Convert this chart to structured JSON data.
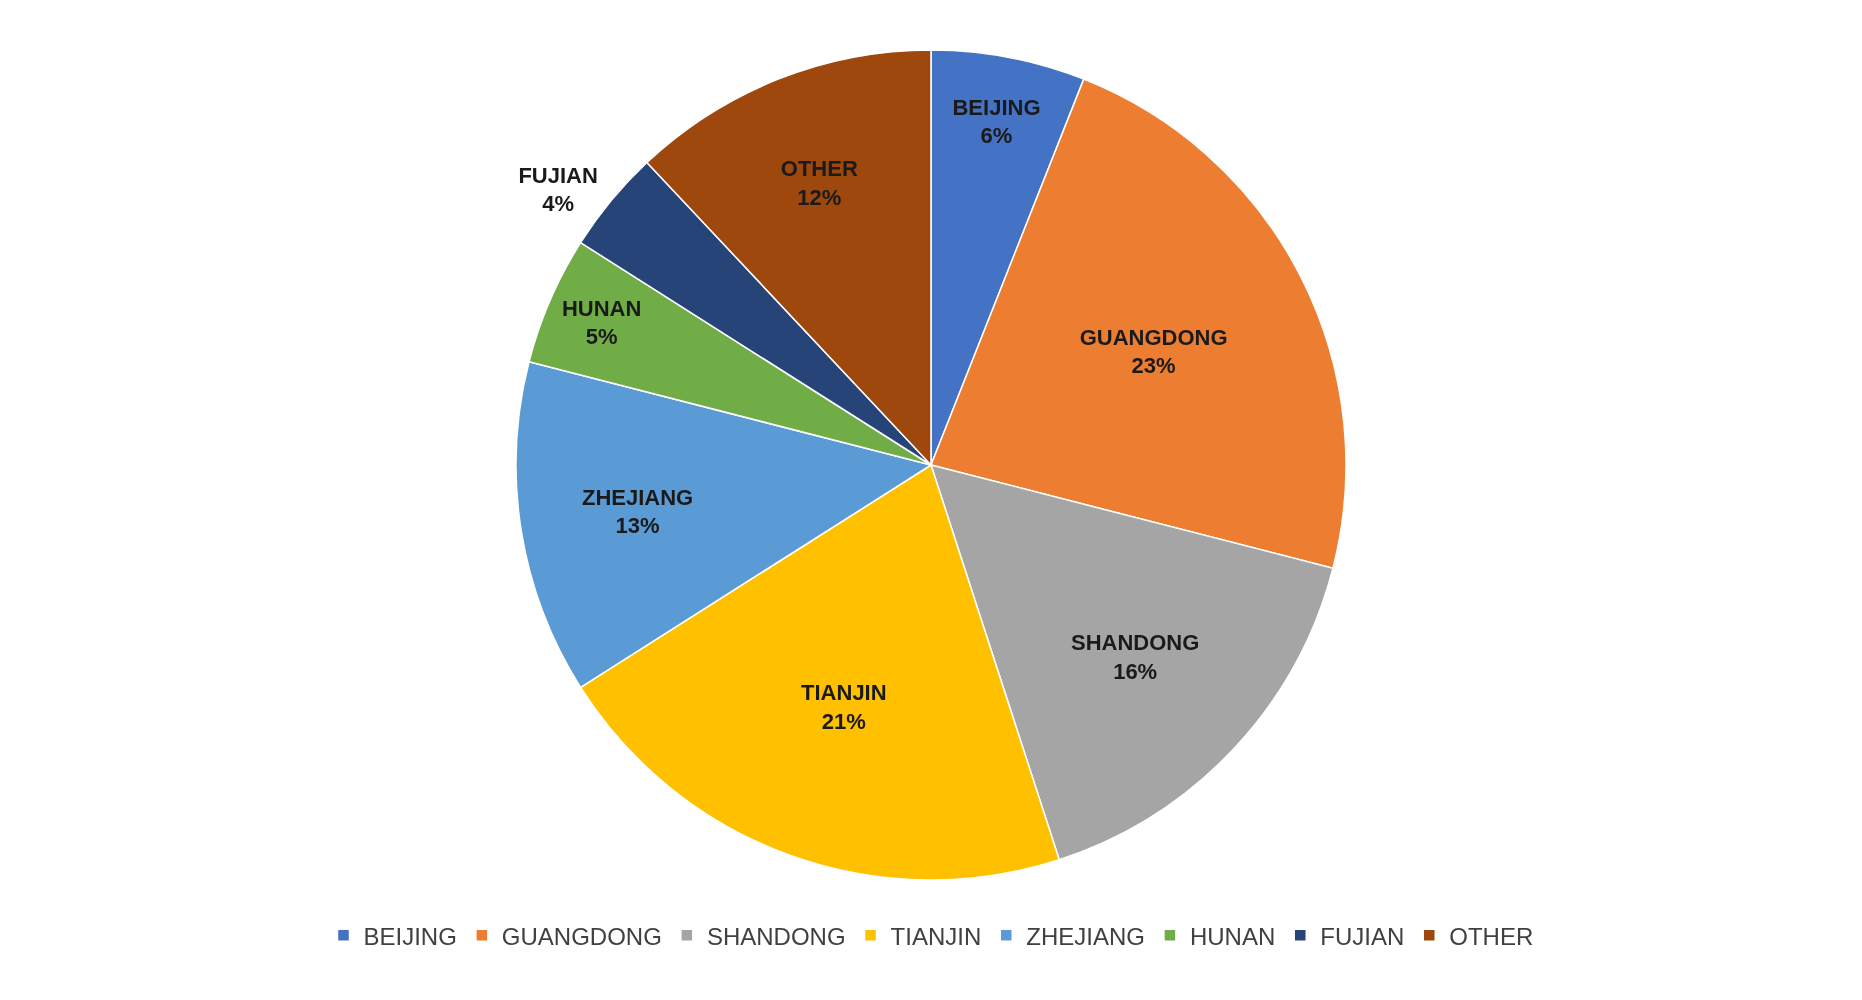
{
  "chart_data": {
    "type": "pie",
    "categories": [
      "BEIJING",
      "GUANGDONG",
      "SHANDONG",
      "TIANJIN",
      "ZHEJIANG",
      "HUNAN",
      "FUJIAN",
      "OTHER"
    ],
    "values": [
      6,
      23,
      16,
      21,
      13,
      5,
      4,
      12
    ],
    "value_labels": [
      "6%",
      "23%",
      "16%",
      "21%",
      "13%",
      "5%",
      "4%",
      "12%"
    ],
    "colors": [
      "#4472c4",
      "#ed7d31",
      "#a5a5a5",
      "#ffc000",
      "#5b9bd5",
      "#70ad47",
      "#264478",
      "#9e480e"
    ],
    "legend": "bottom"
  }
}
